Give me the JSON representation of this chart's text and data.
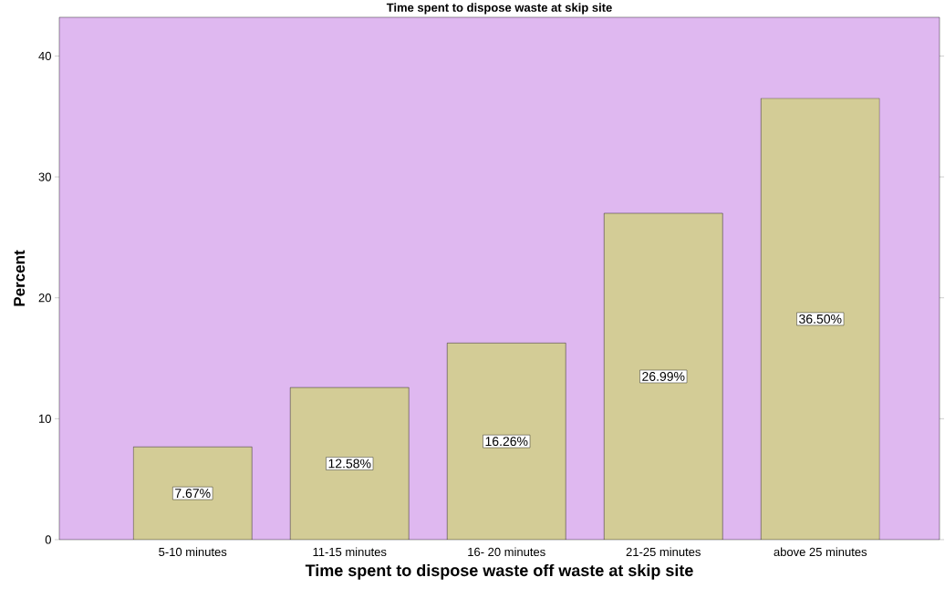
{
  "chart_data": {
    "type": "bar",
    "title": "Time spent to dispose waste at skip site",
    "xlabel": "Time spent to dispose waste off waste at skip site",
    "ylabel": "Percent",
    "categories": [
      "5-10 minutes",
      "11-15 minutes",
      "16- 20 minutes",
      "21-25 minutes",
      "above 25 minutes"
    ],
    "values": [
      7.67,
      12.58,
      16.26,
      26.99,
      36.5
    ],
    "value_labels": [
      "7.67%",
      "12.58%",
      "16.26%",
      "26.99%",
      "36.50%"
    ],
    "color": "#d3cc96",
    "ylim": [
      0,
      43.2
    ],
    "yticks": [
      0,
      10,
      20,
      30,
      40
    ],
    "grid": false
  }
}
